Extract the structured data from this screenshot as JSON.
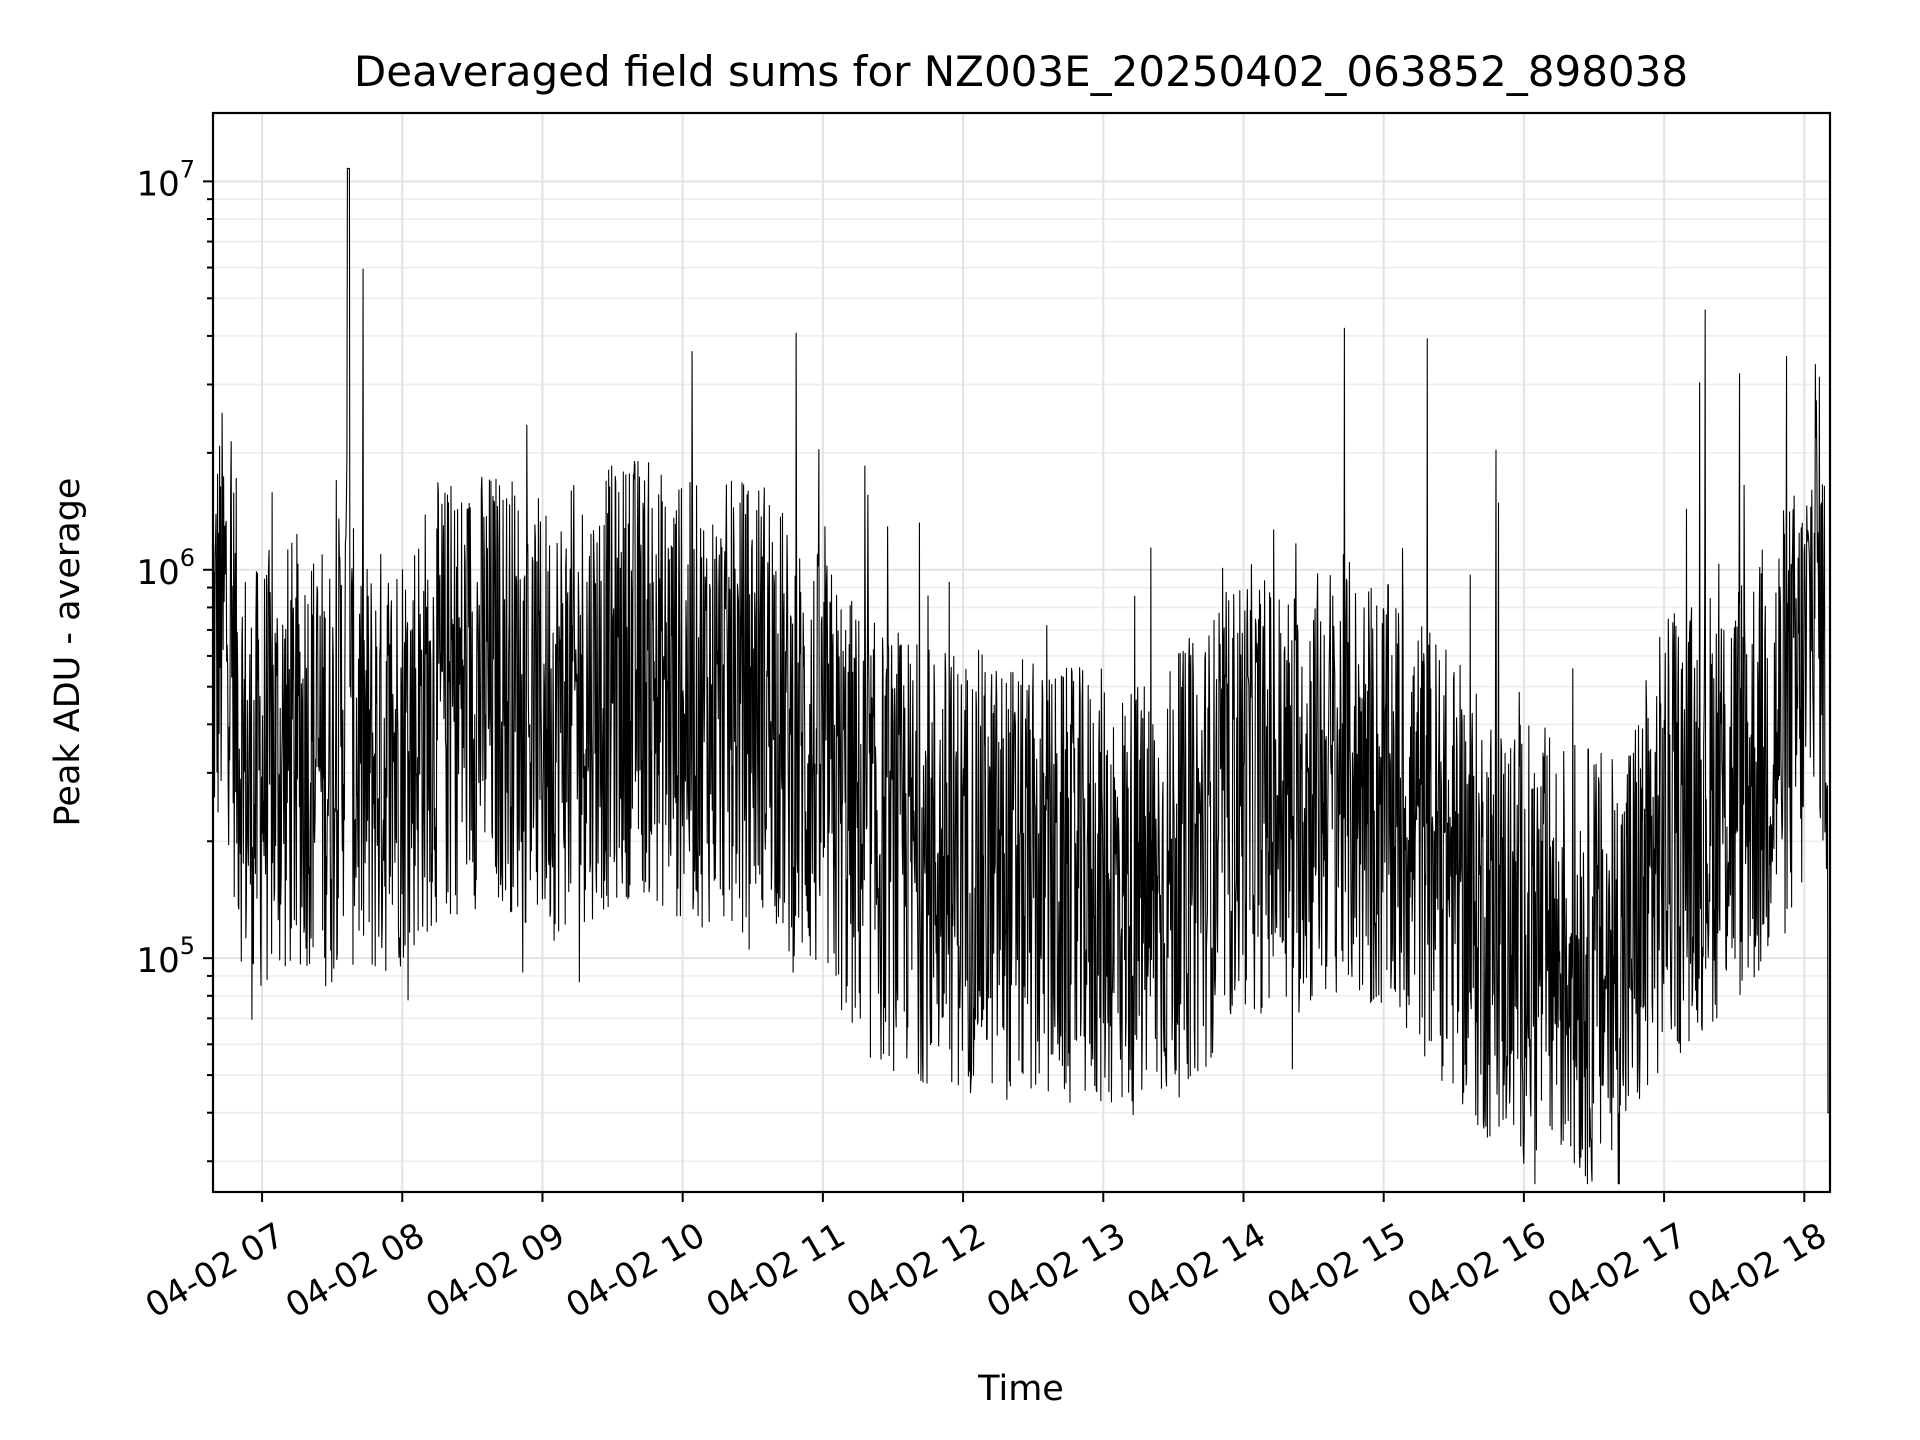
{
  "chart_data": {
    "type": "line",
    "title": "Deaveraged field sums for NZ003E_20250402_063852_898038",
    "xlabel": "Time",
    "ylabel": "Peak ADU - average",
    "yscale": "log",
    "ylim": [
      25000,
      15000000
    ],
    "xlim": [
      "04-02 06:39",
      "04-02 18:11"
    ],
    "grid": true,
    "line_color": "#000000",
    "x_ticks": [
      "04-02 07",
      "04-02 08",
      "04-02 09",
      "04-02 10",
      "04-02 11",
      "04-02 12",
      "04-02 13",
      "04-02 14",
      "04-02 15",
      "04-02 16",
      "04-02 17",
      "04-02 18"
    ],
    "y_ticks": [
      {
        "value": 100000,
        "base": "10",
        "exp": "5"
      },
      {
        "value": 1000000,
        "base": "10",
        "exp": "6"
      },
      {
        "value": 10000000,
        "base": "10",
        "exp": "7"
      }
    ],
    "series": [
      {
        "x": [
          "04-02 06:39",
          "04-02 06:45",
          "04-02 06:50",
          "04-02 06:55",
          "04-02 07:00",
          "04-02 07:10",
          "04-02 07:20",
          "04-02 07:30",
          "04-02 07:36",
          "04-02 07:37",
          "04-02 07:38",
          "04-02 07:45",
          "04-02 08:00",
          "04-02 08:15",
          "04-02 08:30",
          "04-02 08:45",
          "04-02 09:00",
          "04-02 09:15",
          "04-02 09:30",
          "04-02 09:40",
          "04-02 10:00",
          "04-02 10:20",
          "04-02 10:38",
          "04-02 10:45",
          "04-02 11:00",
          "04-02 11:20",
          "04-02 11:40",
          "04-02 12:00",
          "04-02 12:20",
          "04-02 12:40",
          "04-02 13:00",
          "04-02 13:20",
          "04-02 13:40",
          "04-02 14:00",
          "04-02 14:20",
          "04-02 14:40",
          "04-02 15:00",
          "04-02 15:20",
          "04-02 15:40",
          "04-02 16:00",
          "04-02 16:20",
          "04-02 16:40",
          "04-02 17:00",
          "04-02 17:20",
          "04-02 17:40",
          "04-02 18:00",
          "04-02 18:05",
          "04-02 18:10",
          "04-02 18:11"
        ],
        "values": [
          600000,
          800000,
          400000,
          250000,
          300000,
          320000,
          350000,
          300000,
          500000,
          10000000,
          350000,
          300000,
          350000,
          450000,
          500000,
          500000,
          400000,
          450000,
          500000,
          550000,
          450000,
          450000,
          500000,
          350000,
          300000,
          200000,
          180000,
          170000,
          160000,
          150000,
          150000,
          140000,
          180000,
          280000,
          250000,
          300000,
          250000,
          200000,
          130000,
          110000,
          100000,
          90000,
          200000,
          250000,
          300000,
          500000,
          1200000,
          400000,
          40000
        ]
      }
    ]
  }
}
